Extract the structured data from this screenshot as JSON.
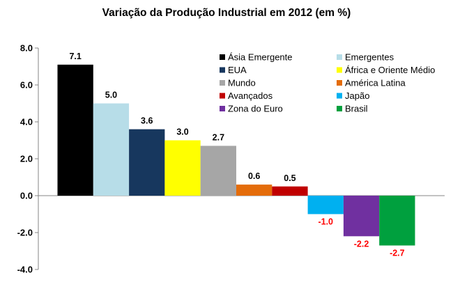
{
  "chart_data": {
    "type": "bar",
    "title": "Variação da Produção Industrial em 2012 (em %)",
    "ylim": [
      -4.0,
      8.0
    ],
    "yticks": [
      "8.0",
      "6.0",
      "4.0",
      "2.0",
      "0.0",
      "-2.0",
      "-4.0"
    ],
    "grid": false,
    "legend_placement": "top-right",
    "categories": [
      "Ásia Emergente",
      "Emergentes",
      "EUA",
      "África e Oriente Médio",
      "Mundo",
      "América Latina",
      "Avançados",
      "Japão",
      "Zona do Euro",
      "Brasil"
    ],
    "values": [
      7.1,
      5.0,
      3.6,
      3.0,
      2.7,
      0.6,
      0.5,
      -1.0,
      -2.2,
      -2.7
    ],
    "value_labels": [
      "7.1",
      "5.0",
      "3.6",
      "3.0",
      "2.7",
      "0.6",
      "0.5",
      "-1.0",
      "-2.2",
      "-2.7"
    ],
    "colors": [
      "#000000",
      "#b7dde8",
      "#17375e",
      "#ffff00",
      "#a6a6a6",
      "#e46c0a",
      "#c00000",
      "#00b0f0",
      "#7030a0",
      "#00a03e"
    ],
    "negative_label_color": "#ff0000",
    "positive_label_color": "#000000"
  }
}
